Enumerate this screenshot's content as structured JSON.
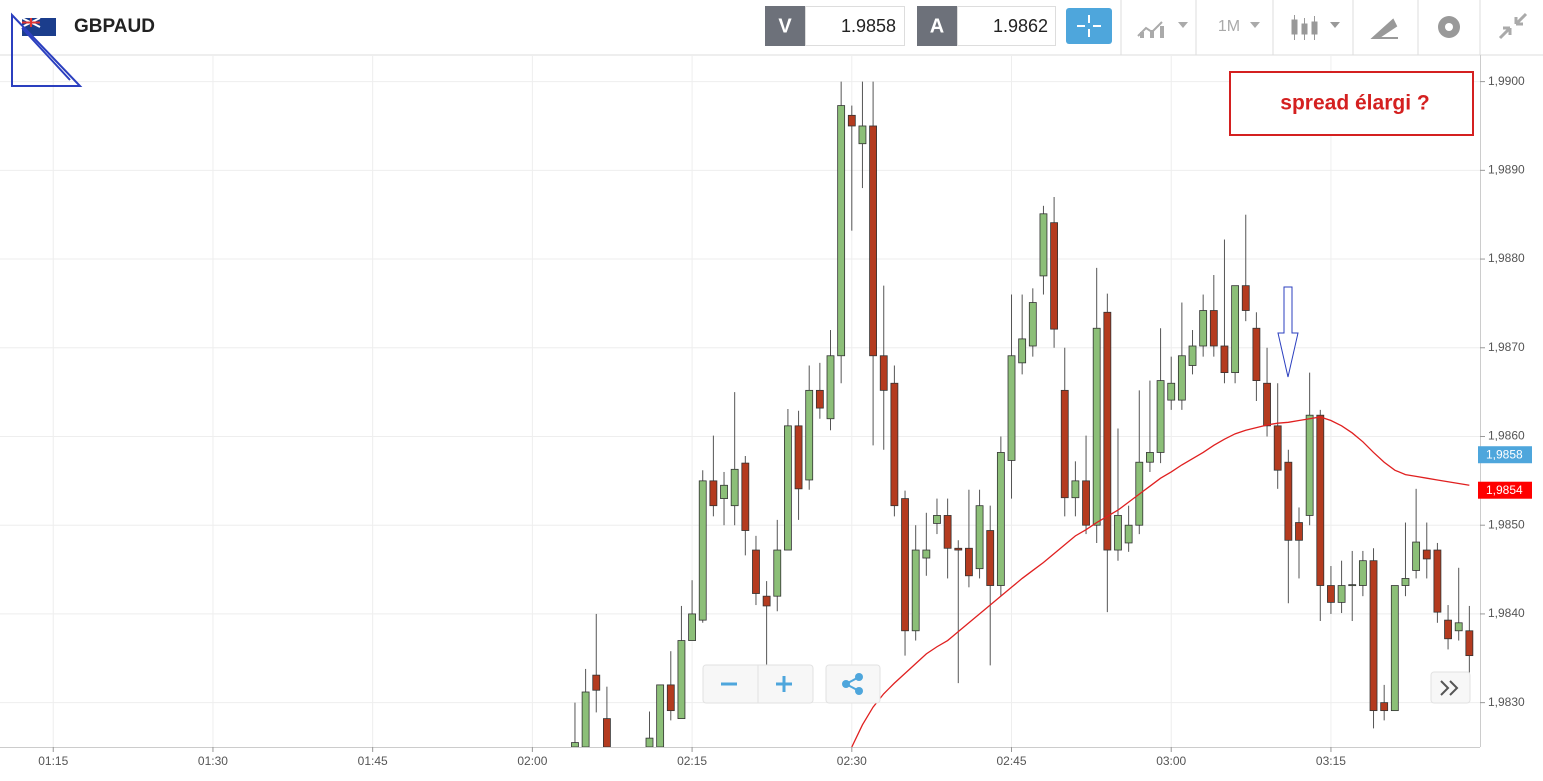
{
  "toolbar": {
    "symbol": "GBPAUD",
    "bid_label": "V",
    "bid": 1.9858,
    "ask_label": "A",
    "ask": 1.9862,
    "timeframe": "1M"
  },
  "chart_data": {
    "type": "candlestick",
    "x": [
      "02:04",
      "02:05",
      "02:06",
      "02:07",
      "02:11",
      "02:12",
      "02:13",
      "02:14",
      "02:15",
      "02:16",
      "02:17",
      "02:18",
      "02:19",
      "02:20",
      "02:21",
      "02:22",
      "02:23",
      "02:24",
      "02:25",
      "02:26",
      "02:27",
      "02:28",
      "02:29",
      "02:30",
      "02:31",
      "02:32",
      "02:33",
      "02:34",
      "02:35",
      "02:36",
      "02:37",
      "02:38",
      "02:39",
      "02:40",
      "02:41",
      "02:42",
      "02:43",
      "02:44",
      "02:45",
      "02:46",
      "02:47",
      "02:48",
      "02:49",
      "02:50",
      "02:51",
      "02:52",
      "02:53",
      "02:54",
      "02:55",
      "02:56",
      "02:57",
      "02:58",
      "02:59",
      "03:00",
      "03:01",
      "03:02",
      "03:03",
      "03:04",
      "03:05",
      "03:06",
      "03:07",
      "03:08",
      "03:09",
      "03:10",
      "03:11",
      "03:12",
      "03:13",
      "03:14",
      "03:15",
      "03:16",
      "03:17",
      "03:18",
      "03:19",
      "03:20",
      "03:21",
      "03:22",
      "03:23",
      "03:24",
      "03:25",
      "03:26",
      "03:27",
      "03:28"
    ],
    "open": [
      1.9825,
      1.9825,
      1.98331,
      1.98282,
      1.9825,
      1.9825,
      1.9832,
      1.98282,
      1.9837,
      1.98393,
      1.9855,
      1.9853,
      1.98522,
      1.9857,
      1.98472,
      1.9842,
      1.9842,
      1.98472,
      1.98612,
      1.98551,
      1.98652,
      1.9862,
      1.98691,
      1.98962,
      1.9893,
      1.9895,
      1.98691,
      1.9866,
      1.9853,
      1.98381,
      1.98463,
      1.98502,
      1.98511,
      1.98474,
      1.98474,
      1.98451,
      1.98494,
      1.98432,
      1.98573,
      1.98683,
      1.98702,
      1.98781,
      1.98841,
      1.98652,
      1.98531,
      1.9855,
      1.985,
      1.9874,
      1.98472,
      1.9848,
      1.985,
      1.98571,
      1.98582,
      1.98641,
      1.98641,
      1.9868,
      1.98702,
      1.98742,
      1.98702,
      1.98672,
      1.9877,
      1.98722,
      1.9866,
      1.98612,
      1.98571,
      1.98503,
      1.98511,
      1.98624,
      1.98432,
      1.98413,
      1.98432,
      1.98432,
      1.9846,
      1.983,
      1.98291,
      1.98432,
      1.98449,
      1.98472,
      1.98472,
      1.98393,
      1.98381,
      1.98381
    ],
    "high": [
      1.983,
      1.98338,
      1.984,
      1.98318,
      1.9829,
      1.9832,
      1.98358,
      1.98409,
      1.98438,
      1.98562,
      1.98601,
      1.9856,
      1.9865,
      1.98578,
      1.98488,
      1.98437,
      1.98506,
      1.98631,
      1.98629,
      1.9868,
      1.98683,
      1.9872,
      1.99,
      1.98973,
      1.99,
      1.99,
      1.9877,
      1.9868,
      1.98539,
      1.985,
      1.98514,
      1.9853,
      1.9853,
      1.98483,
      1.9854,
      1.9854,
      1.98522,
      1.986,
      1.9876,
      1.9876,
      1.98767,
      1.9886,
      1.9887,
      1.987,
      1.98572,
      1.98601,
      1.9879,
      1.98761,
      1.98609,
      1.98522,
      1.98652,
      1.98663,
      1.98722,
      1.9869,
      1.98751,
      1.9872,
      1.9876,
      1.98782,
      1.98822,
      1.9877,
      1.9885,
      1.9874,
      1.987,
      1.9866,
      1.98585,
      1.9852,
      1.98672,
      1.9863,
      1.98454,
      1.9846,
      1.98471,
      1.98471,
      1.98474,
      1.9832,
      1.98432,
      1.98503,
      1.98541,
      1.98503,
      1.9848,
      1.9841,
      1.98452,
      1.98409
    ],
    "low": [
      1.98245,
      1.9825,
      1.98289,
      1.9825,
      1.9825,
      1.9825,
      1.9828,
      1.98282,
      1.9837,
      1.9839,
      1.9851,
      1.985,
      1.985,
      1.98466,
      1.9841,
      1.98342,
      1.98403,
      1.98472,
      1.98506,
      1.9854,
      1.9862,
      1.98607,
      1.9866,
      1.98832,
      1.9888,
      1.9859,
      1.98585,
      1.9851,
      1.98353,
      1.9837,
      1.98443,
      1.9849,
      1.9844,
      1.98322,
      1.9843,
      1.9844,
      1.98342,
      1.9842,
      1.9853,
      1.9867,
      1.9869,
      1.9876,
      1.987,
      1.9851,
      1.9851,
      1.9849,
      1.9848,
      1.98402,
      1.9846,
      1.9847,
      1.9849,
      1.9856,
      1.9857,
      1.9863,
      1.9863,
      1.9867,
      1.9869,
      1.9869,
      1.9866,
      1.9866,
      1.9873,
      1.9864,
      1.986,
      1.98541,
      1.98412,
      1.9844,
      1.985,
      1.98392,
      1.984,
      1.98401,
      1.98392,
      1.9842,
      1.98271,
      1.9828,
      1.98291,
      1.9842,
      1.9844,
      1.9844,
      1.9839,
      1.9836,
      1.9837,
      1.98334
    ],
    "close": [
      1.98255,
      1.98312,
      1.98314,
      1.9825,
      1.9826,
      1.9832,
      1.98291,
      1.9837,
      1.984,
      1.9855,
      1.98522,
      1.98545,
      1.98563,
      1.98494,
      1.98423,
      1.98409,
      1.98472,
      1.98612,
      1.98541,
      1.98652,
      1.98632,
      1.98691,
      1.98973,
      1.9895,
      1.9895,
      1.98691,
      1.98652,
      1.98522,
      1.98381,
      1.98472,
      1.98472,
      1.98511,
      1.98474,
      1.98472,
      1.98443,
      1.98522,
      1.98432,
      1.98582,
      1.98691,
      1.9871,
      1.98751,
      1.98851,
      1.98721,
      1.98531,
      1.9855,
      1.985,
      1.98722,
      1.98472,
      1.98511,
      1.985,
      1.98571,
      1.98582,
      1.98663,
      1.9866,
      1.98691,
      1.98702,
      1.98742,
      1.98702,
      1.98672,
      1.9877,
      1.98742,
      1.98663,
      1.98612,
      1.98562,
      1.98483,
      1.98483,
      1.98624,
      1.98432,
      1.98413,
      1.98432,
      1.98433,
      1.9846,
      1.98291,
      1.98291,
      1.98432,
      1.9844,
      1.98481,
      1.98462,
      1.98402,
      1.98372,
      1.9839,
      1.98353
    ],
    "up_color": "#8cbf78",
    "down_color": "#b43b1f",
    "ma": {
      "color": "#e02020",
      "values": [
        null,
        null,
        null,
        null,
        null,
        null,
        null,
        null,
        null,
        null,
        null,
        null,
        null,
        null,
        null,
        null,
        null,
        null,
        null,
        null,
        null,
        null,
        null,
        1.9825,
        1.98275,
        1.98295,
        1.9831,
        1.98322,
        1.98333,
        1.98344,
        1.98355,
        1.98363,
        1.9837,
        1.9838,
        1.9839,
        1.984,
        1.9841,
        1.9842,
        1.9843,
        1.9844,
        1.98449,
        1.98458,
        1.98468,
        1.98478,
        1.98488,
        1.98495,
        1.98503,
        1.9851,
        1.98517,
        1.98526,
        1.98535,
        1.98544,
        1.98553,
        1.9856,
        1.98568,
        1.98575,
        1.98582,
        1.9859,
        1.98597,
        1.98603,
        1.98607,
        1.9861,
        1.98613,
        1.98615,
        1.98616,
        1.98618,
        1.9862,
        1.98622,
        1.98618,
        1.98612,
        1.98604,
        1.98594,
        1.98582,
        1.98571,
        1.98562,
        1.98557,
        1.98555,
        1.98553,
        1.98551,
        1.98549,
        1.98547,
        1.98545
      ]
    },
    "xlim": [
      "01:10",
      "03:29"
    ],
    "xticks": [
      "01:15",
      "01:30",
      "01:45",
      "02:00",
      "02:15",
      "02:30",
      "02:45",
      "03:00",
      "03:15"
    ],
    "ylim": [
      1.9825,
      1.9903
    ],
    "yticks": [
      {
        "value": 1.983,
        "label": "1,9830"
      },
      {
        "value": 1.984,
        "label": "1,9840"
      },
      {
        "value": 1.985,
        "label": "1,9850"
      },
      {
        "value": 1.986,
        "label": "1,9860"
      },
      {
        "value": 1.987,
        "label": "1,9870"
      },
      {
        "value": 1.988,
        "label": "1,9880"
      },
      {
        "value": 1.989,
        "label": "1,9890"
      },
      {
        "value": 1.99,
        "label": "1,9900"
      }
    ],
    "grid": true,
    "price_tags": [
      {
        "value": 1.9858,
        "label": "1,9858",
        "color": "#4ea6dc"
      },
      {
        "value": 1.9854,
        "label": "1,9854",
        "color": "#ff0000"
      }
    ],
    "annotation": "spread élargi ?"
  }
}
